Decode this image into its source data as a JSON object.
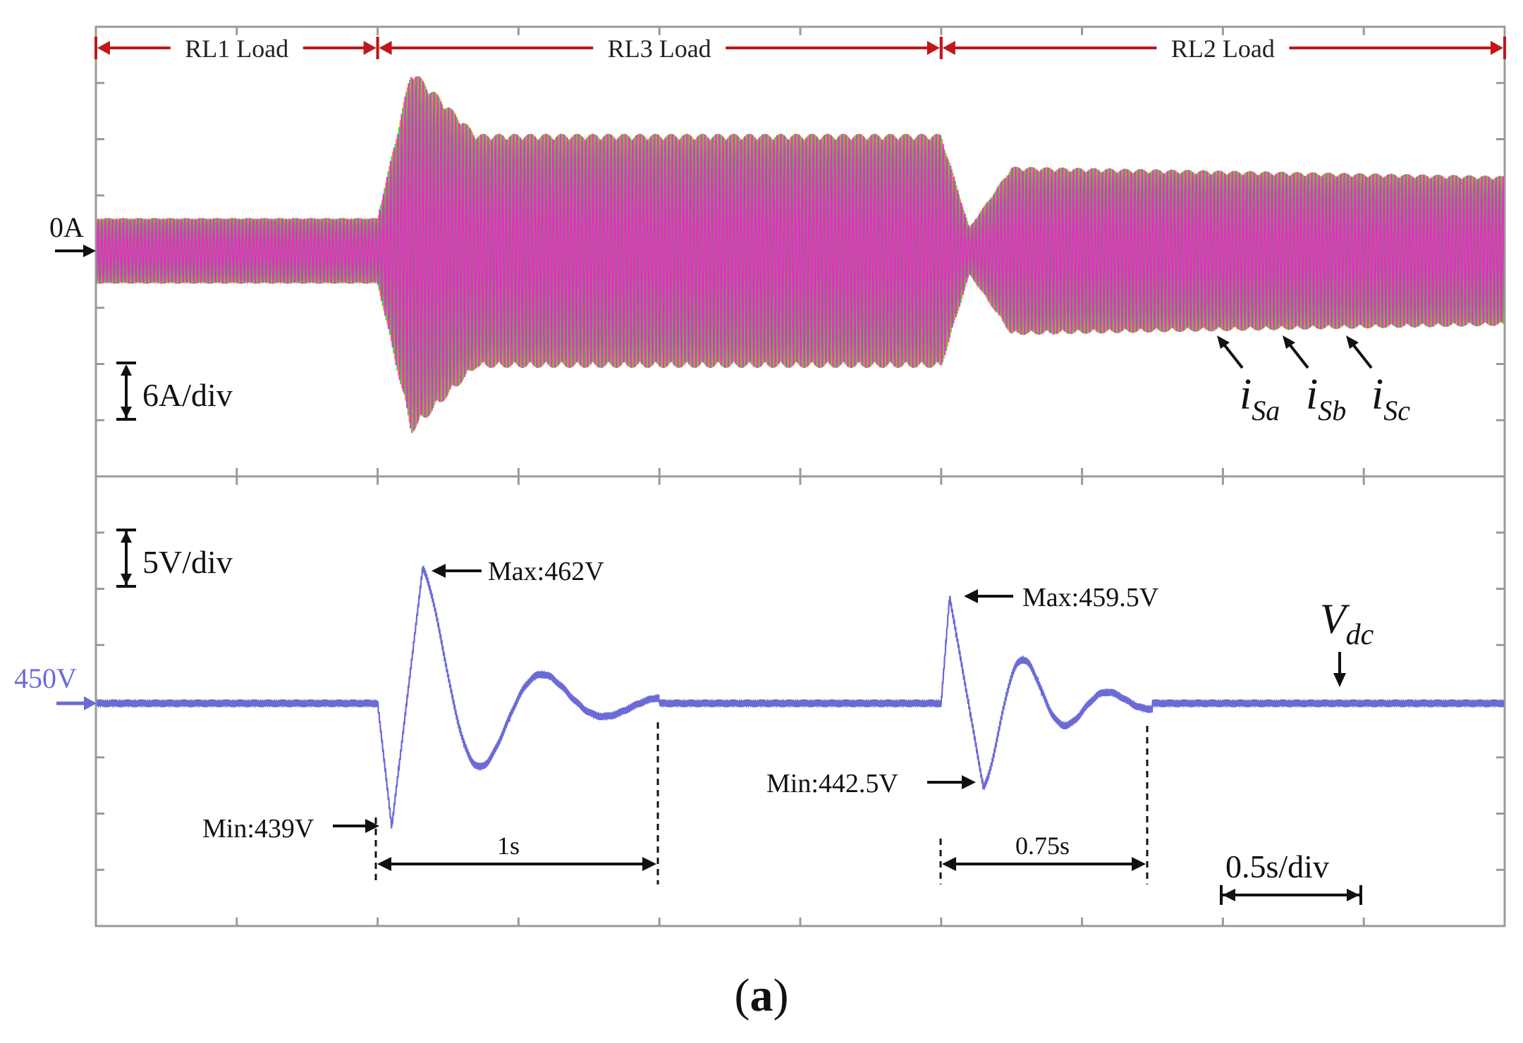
{
  "chart_data": {
    "type": "line",
    "title": "",
    "caption_open": "(",
    "caption_letter": "a",
    "caption_close": ")",
    "time_per_div_s": 0.5,
    "x_divisions": 10,
    "t_range_s": [
      0,
      5
    ],
    "segments": [
      {
        "label": "RL1 Load",
        "t_start": 0.0,
        "t_end": 1.0
      },
      {
        "label": "RL3 Load",
        "t_start": 1.0,
        "t_end": 3.0
      },
      {
        "label": "RL2 Load",
        "t_start": 3.0,
        "t_end": 5.0
      }
    ],
    "current_panel": {
      "scale_label": "6A/div",
      "amps_per_div": 6,
      "zero_label": "0A",
      "amplitude_envelope_A": [
        {
          "t": 0.0,
          "amp": 3.5
        },
        {
          "t": 1.0,
          "amp": 3.5
        },
        {
          "t": 1.12,
          "amp": 19.5
        },
        {
          "t": 1.35,
          "amp": 12.5
        },
        {
          "t": 3.0,
          "amp": 12.5
        },
        {
          "t": 3.1,
          "amp": 2.5
        },
        {
          "t": 3.25,
          "amp": 9.0
        },
        {
          "t": 5.0,
          "amp": 8.0
        }
      ],
      "series": [
        {
          "name": "iSa",
          "main": "i",
          "sub": "Sa",
          "color": "#ff8c1a"
        },
        {
          "name": "iSb",
          "main": "i",
          "sub": "Sb",
          "color": "#2ecc40"
        },
        {
          "name": "iSc",
          "main": "i",
          "sub": "Sc",
          "color": "#ee22cc"
        }
      ]
    },
    "voltage_panel": {
      "scale_label": "5V/div",
      "volts_per_div": 5,
      "reference_label": "450V",
      "reference_value": 450,
      "color": "#6b6bd6",
      "series_label_main": "V",
      "series_label_sub": "dc",
      "annotations": [
        {
          "label": "Max:462V",
          "t": 1.15,
          "value": 462
        },
        {
          "label": "Min:439V",
          "t": 1.04,
          "value": 439
        },
        {
          "label": "Max:459.5V",
          "t": 3.05,
          "value": 459.5
        },
        {
          "label": "Min:442.5V",
          "t": 3.15,
          "value": 442.5
        }
      ],
      "settling": [
        {
          "label": "1s",
          "t_start": 1.0,
          "t_end": 2.0
        },
        {
          "label": "0.75s",
          "t_start": 3.0,
          "t_end": 3.75
        }
      ],
      "time_scale_label": "0.5s/div"
    }
  }
}
